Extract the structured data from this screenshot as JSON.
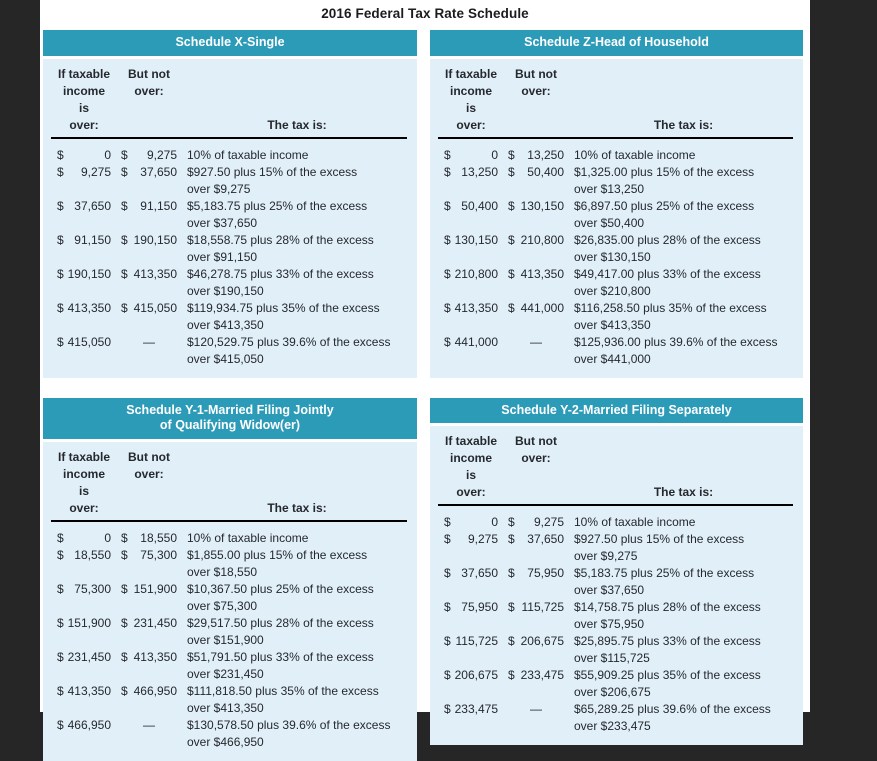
{
  "page_title": "2016 Federal Tax Rate Schedule",
  "colors": {
    "header_bg": "#2C9BB8",
    "panel_bg": "#E1EFF8",
    "frame_bg": "#262626"
  },
  "column_headers": {
    "col1_lines": [
      "If taxable",
      "income is",
      "over:"
    ],
    "col2_lines": [
      "But not",
      "over:"
    ],
    "col3": "The tax is:"
  },
  "schedules": [
    {
      "title_lines": [
        "Schedule X-Single"
      ],
      "rows": [
        {
          "over": "0",
          "but": "9,275",
          "tax": [
            "10% of taxable income"
          ]
        },
        {
          "over": "9,275",
          "but": "37,650",
          "tax": [
            "$927.50 plus 15% of the excess",
            "over $9,275"
          ]
        },
        {
          "over": "37,650",
          "but": "91,150",
          "tax": [
            "$5,183.75 plus 25% of the excess",
            "over $37,650"
          ]
        },
        {
          "over": "91,150",
          "but": "190,150",
          "tax": [
            "$18,558.75 plus 28% of the excess",
            "over $91,150"
          ]
        },
        {
          "over": "190,150",
          "but": "413,350",
          "tax": [
            "$46,278.75 plus 33% of the excess",
            "over $190,150"
          ]
        },
        {
          "over": "413,350",
          "but": "415,050",
          "tax": [
            "$119,934.75 plus 35% of the excess",
            "over $413,350"
          ]
        },
        {
          "over": "415,050",
          "but": "—",
          "tax": [
            "$120,529.75 plus 39.6% of the excess",
            "over $415,050"
          ]
        }
      ]
    },
    {
      "title_lines": [
        "Schedule Z-Head of Household"
      ],
      "rows": [
        {
          "over": "0",
          "but": "13,250",
          "tax": [
            "10% of taxable income"
          ]
        },
        {
          "over": "13,250",
          "but": "50,400",
          "tax": [
            "$1,325.00 plus 15% of the excess",
            "over $13,250"
          ]
        },
        {
          "over": "50,400",
          "but": "130,150",
          "tax": [
            "$6,897.50 plus 25% of the excess",
            "over $50,400"
          ]
        },
        {
          "over": "130,150",
          "but": "210,800",
          "tax": [
            "$26,835.00 plus 28% of the excess",
            "over $130,150"
          ]
        },
        {
          "over": "210,800",
          "but": "413,350",
          "tax": [
            "$49,417.00 plus 33% of the excess",
            "over $210,800"
          ]
        },
        {
          "over": "413,350",
          "but": "441,000",
          "tax": [
            "$116,258.50 plus 35% of the excess",
            "over $413,350"
          ]
        },
        {
          "over": "441,000",
          "but": "—",
          "tax": [
            "$125,936.00 plus 39.6% of the excess",
            "over $441,000"
          ]
        }
      ]
    },
    {
      "title_lines": [
        "Schedule Y-1-Married Filing Jointly",
        "of Qualifying Widow(er)"
      ],
      "rows": [
        {
          "over": "0",
          "but": "18,550",
          "tax": [
            "10% of taxable income"
          ]
        },
        {
          "over": "18,550",
          "but": "75,300",
          "tax": [
            "$1,855.00 plus 15% of the excess",
            "over $18,550"
          ]
        },
        {
          "over": "75,300",
          "but": "151,900",
          "tax": [
            "$10,367.50 plus 25% of the excess",
            "over $75,300"
          ]
        },
        {
          "over": "151,900",
          "but": "231,450",
          "tax": [
            "$29,517.50 plus 28% of the excess",
            "over $151,900"
          ]
        },
        {
          "over": "231,450",
          "but": "413,350",
          "tax": [
            "$51,791.50 plus 33% of the excess",
            "over $231,450"
          ]
        },
        {
          "over": "413,350",
          "but": "466,950",
          "tax": [
            "$111,818.50 plus 35% of the excess",
            "over $413,350"
          ]
        },
        {
          "over": "466,950",
          "but": "—",
          "tax": [
            "$130,578.50 plus 39.6% of the excess",
            "over $466,950"
          ]
        }
      ]
    },
    {
      "title_lines": [
        "Schedule Y-2-Married Filing Separately"
      ],
      "rows": [
        {
          "over": "0",
          "but": "9,275",
          "tax": [
            "10% of taxable income"
          ]
        },
        {
          "over": "9,275",
          "but": "37,650",
          "tax": [
            "$927.50 plus 15% of the excess",
            "over $9,275"
          ]
        },
        {
          "over": "37,650",
          "but": "75,950",
          "tax": [
            "$5,183.75 plus 25% of the excess",
            "over $37,650"
          ]
        },
        {
          "over": "75,950",
          "but": "115,725",
          "tax": [
            "$14,758.75 plus 28% of the excess",
            "over $75,950"
          ]
        },
        {
          "over": "115,725",
          "but": "206,675",
          "tax": [
            "$25,895.75 plus 33% of the excess",
            "over $115,725"
          ]
        },
        {
          "over": "206,675",
          "but": "233,475",
          "tax": [
            "$55,909.25 plus 35% of the excess",
            "over $206,675"
          ]
        },
        {
          "over": "233,475",
          "but": "—",
          "tax": [
            "$65,289.25 plus 39.6% of the excess",
            "over $233,475"
          ]
        }
      ]
    }
  ]
}
